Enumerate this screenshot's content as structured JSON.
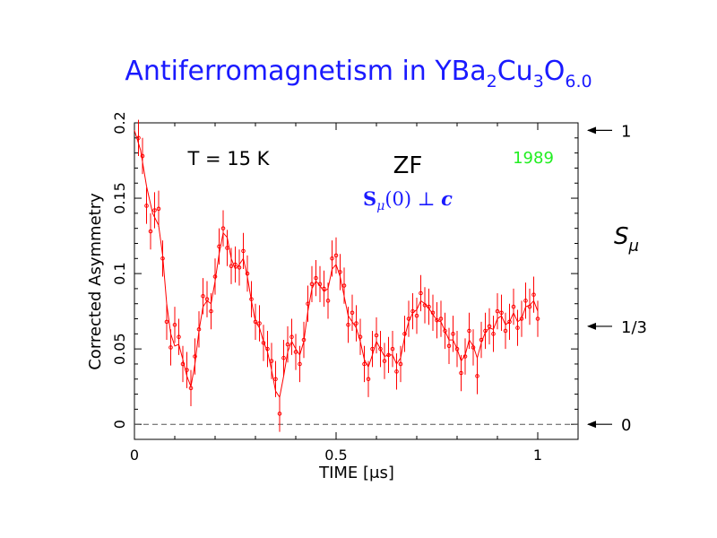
{
  "title": {
    "main": "Antiferromagnetism in YBa",
    "s1": "2",
    "m1": "Cu",
    "s2": "3",
    "m2": "O",
    "s3": "6.0"
  },
  "annotations": {
    "temperature": "T = 15 K",
    "field": "ZF",
    "year": "1989",
    "spin_symbol": "S",
    "spin_sub": "μ",
    "spin_rest": "(0) ⊥ ",
    "spin_c": "c"
  },
  "right_axis": {
    "label": "S",
    "label_sub": "μ",
    "markers": [
      {
        "label": "1",
        "y": 0.195
      },
      {
        "label": "1/3",
        "y": 0.065
      },
      {
        "label": "0",
        "y": 0.0
      }
    ]
  },
  "colors": {
    "title": "#1a1aff",
    "year": "#22ee22",
    "spin": "#1a1aff",
    "data": "#ff0000"
  },
  "chart_data": {
    "type": "scatter",
    "xlabel": "TIME [μs]",
    "ylabel": "Corrected Asymmetry",
    "xlim": [
      0,
      1.1
    ],
    "ylim": [
      -0.01,
      0.2
    ],
    "x_ticks": [
      {
        "v": 0,
        "label": "0"
      },
      {
        "v": 0.5,
        "label": "0.5"
      },
      {
        "v": 1,
        "label": "1"
      }
    ],
    "y_ticks": [
      {
        "v": 0,
        "label": "0"
      },
      {
        "v": 0.05,
        "label": "0.05"
      },
      {
        "v": 0.1,
        "label": "0.1"
      },
      {
        "v": 0.15,
        "label": "0.15"
      },
      {
        "v": 0.2,
        "label": "0.2"
      }
    ],
    "baseline": 0,
    "series": [
      {
        "points": [
          [
            0.01,
            0.19
          ],
          [
            0.02,
            0.178
          ],
          [
            0.03,
            0.145
          ],
          [
            0.04,
            0.128
          ],
          [
            0.05,
            0.142
          ],
          [
            0.06,
            0.143
          ],
          [
            0.07,
            0.11
          ],
          [
            0.08,
            0.068
          ],
          [
            0.09,
            0.051
          ],
          [
            0.1,
            0.066
          ],
          [
            0.11,
            0.058
          ],
          [
            0.12,
            0.04
          ],
          [
            0.13,
            0.036
          ],
          [
            0.14,
            0.024
          ],
          [
            0.15,
            0.045
          ],
          [
            0.16,
            0.063
          ],
          [
            0.17,
            0.085
          ],
          [
            0.18,
            0.083
          ],
          [
            0.19,
            0.075
          ],
          [
            0.2,
            0.098
          ],
          [
            0.21,
            0.118
          ],
          [
            0.22,
            0.13
          ],
          [
            0.23,
            0.117
          ],
          [
            0.24,
            0.105
          ],
          [
            0.25,
            0.106
          ],
          [
            0.26,
            0.104
          ],
          [
            0.27,
            0.115
          ],
          [
            0.28,
            0.1
          ],
          [
            0.29,
            0.083
          ],
          [
            0.3,
            0.068
          ],
          [
            0.31,
            0.067
          ],
          [
            0.32,
            0.054
          ],
          [
            0.33,
            0.05
          ],
          [
            0.34,
            0.042
          ],
          [
            0.35,
            0.03
          ],
          [
            0.36,
            0.007
          ],
          [
            0.37,
            0.044
          ],
          [
            0.38,
            0.053
          ],
          [
            0.39,
            0.058
          ],
          [
            0.4,
            0.048
          ],
          [
            0.41,
            0.04
          ],
          [
            0.42,
            0.056
          ],
          [
            0.43,
            0.08
          ],
          [
            0.44,
            0.093
          ],
          [
            0.45,
            0.097
          ],
          [
            0.46,
            0.093
          ],
          [
            0.47,
            0.09
          ],
          [
            0.48,
            0.082
          ],
          [
            0.49,
            0.11
          ],
          [
            0.5,
            0.112
          ],
          [
            0.51,
            0.101
          ],
          [
            0.52,
            0.092
          ],
          [
            0.53,
            0.066
          ],
          [
            0.54,
            0.074
          ],
          [
            0.55,
            0.067
          ],
          [
            0.56,
            0.058
          ],
          [
            0.57,
            0.04
          ],
          [
            0.58,
            0.03
          ],
          [
            0.59,
            0.05
          ],
          [
            0.6,
            0.059
          ],
          [
            0.61,
            0.05
          ],
          [
            0.62,
            0.042
          ],
          [
            0.63,
            0.046
          ],
          [
            0.64,
            0.05
          ],
          [
            0.65,
            0.035
          ],
          [
            0.66,
            0.04
          ],
          [
            0.67,
            0.06
          ],
          [
            0.68,
            0.07
          ],
          [
            0.69,
            0.075
          ],
          [
            0.7,
            0.072
          ],
          [
            0.71,
            0.087
          ],
          [
            0.72,
            0.079
          ],
          [
            0.73,
            0.078
          ],
          [
            0.74,
            0.074
          ],
          [
            0.75,
            0.069
          ],
          [
            0.76,
            0.07
          ],
          [
            0.77,
            0.062
          ],
          [
            0.78,
            0.052
          ],
          [
            0.79,
            0.06
          ],
          [
            0.8,
            0.05
          ],
          [
            0.81,
            0.034
          ],
          [
            0.82,
            0.045
          ],
          [
            0.83,
            0.062
          ],
          [
            0.84,
            0.051
          ],
          [
            0.85,
            0.032
          ],
          [
            0.86,
            0.056
          ],
          [
            0.87,
            0.062
          ],
          [
            0.88,
            0.065
          ],
          [
            0.89,
            0.06
          ],
          [
            0.9,
            0.075
          ],
          [
            0.91,
            0.074
          ],
          [
            0.92,
            0.062
          ],
          [
            0.93,
            0.068
          ],
          [
            0.94,
            0.078
          ],
          [
            0.95,
            0.064
          ],
          [
            0.96,
            0.07
          ],
          [
            0.97,
            0.082
          ],
          [
            0.98,
            0.078
          ],
          [
            0.99,
            0.086
          ],
          [
            1.0,
            0.07
          ]
        ],
        "fit": [
          [
            0.0,
            0.195
          ],
          [
            0.015,
            0.182
          ],
          [
            0.03,
            0.158
          ],
          [
            0.045,
            0.14
          ],
          [
            0.06,
            0.132
          ],
          [
            0.07,
            0.112
          ],
          [
            0.08,
            0.08
          ],
          [
            0.09,
            0.06
          ],
          [
            0.1,
            0.052
          ],
          [
            0.11,
            0.053
          ],
          [
            0.12,
            0.043
          ],
          [
            0.13,
            0.032
          ],
          [
            0.14,
            0.025
          ],
          [
            0.15,
            0.04
          ],
          [
            0.16,
            0.062
          ],
          [
            0.17,
            0.078
          ],
          [
            0.18,
            0.082
          ],
          [
            0.19,
            0.08
          ],
          [
            0.2,
            0.095
          ],
          [
            0.21,
            0.113
          ],
          [
            0.22,
            0.127
          ],
          [
            0.23,
            0.124
          ],
          [
            0.24,
            0.11
          ],
          [
            0.25,
            0.103
          ],
          [
            0.26,
            0.106
          ],
          [
            0.27,
            0.11
          ],
          [
            0.28,
            0.098
          ],
          [
            0.29,
            0.082
          ],
          [
            0.3,
            0.068
          ],
          [
            0.31,
            0.064
          ],
          [
            0.32,
            0.055
          ],
          [
            0.33,
            0.048
          ],
          [
            0.34,
            0.036
          ],
          [
            0.35,
            0.022
          ],
          [
            0.36,
            0.018
          ],
          [
            0.37,
            0.032
          ],
          [
            0.38,
            0.048
          ],
          [
            0.39,
            0.055
          ],
          [
            0.4,
            0.05
          ],
          [
            0.41,
            0.046
          ],
          [
            0.42,
            0.055
          ],
          [
            0.43,
            0.075
          ],
          [
            0.44,
            0.09
          ],
          [
            0.45,
            0.095
          ],
          [
            0.46,
            0.092
          ],
          [
            0.47,
            0.088
          ],
          [
            0.48,
            0.09
          ],
          [
            0.49,
            0.103
          ],
          [
            0.5,
            0.106
          ],
          [
            0.51,
            0.098
          ],
          [
            0.52,
            0.085
          ],
          [
            0.53,
            0.072
          ],
          [
            0.54,
            0.068
          ],
          [
            0.55,
            0.064
          ],
          [
            0.56,
            0.055
          ],
          [
            0.57,
            0.043
          ],
          [
            0.58,
            0.038
          ],
          [
            0.59,
            0.046
          ],
          [
            0.6,
            0.055
          ],
          [
            0.61,
            0.05
          ],
          [
            0.62,
            0.045
          ],
          [
            0.63,
            0.046
          ],
          [
            0.64,
            0.046
          ],
          [
            0.65,
            0.04
          ],
          [
            0.66,
            0.044
          ],
          [
            0.67,
            0.058
          ],
          [
            0.68,
            0.068
          ],
          [
            0.69,
            0.074
          ],
          [
            0.7,
            0.076
          ],
          [
            0.71,
            0.082
          ],
          [
            0.72,
            0.08
          ],
          [
            0.73,
            0.077
          ],
          [
            0.74,
            0.073
          ],
          [
            0.75,
            0.069
          ],
          [
            0.76,
            0.068
          ],
          [
            0.77,
            0.062
          ],
          [
            0.78,
            0.056
          ],
          [
            0.79,
            0.056
          ],
          [
            0.8,
            0.05
          ],
          [
            0.81,
            0.042
          ],
          [
            0.82,
            0.046
          ],
          [
            0.83,
            0.056
          ],
          [
            0.84,
            0.052
          ],
          [
            0.85,
            0.044
          ],
          [
            0.86,
            0.054
          ],
          [
            0.87,
            0.061
          ],
          [
            0.88,
            0.064
          ],
          [
            0.89,
            0.063
          ],
          [
            0.9,
            0.07
          ],
          [
            0.91,
            0.072
          ],
          [
            0.92,
            0.066
          ],
          [
            0.93,
            0.068
          ],
          [
            0.94,
            0.074
          ],
          [
            0.95,
            0.068
          ],
          [
            0.96,
            0.07
          ],
          [
            0.97,
            0.078
          ],
          [
            0.98,
            0.079
          ],
          [
            0.99,
            0.082
          ],
          [
            1.0,
            0.075
          ]
        ],
        "error": 0.012
      }
    ]
  }
}
